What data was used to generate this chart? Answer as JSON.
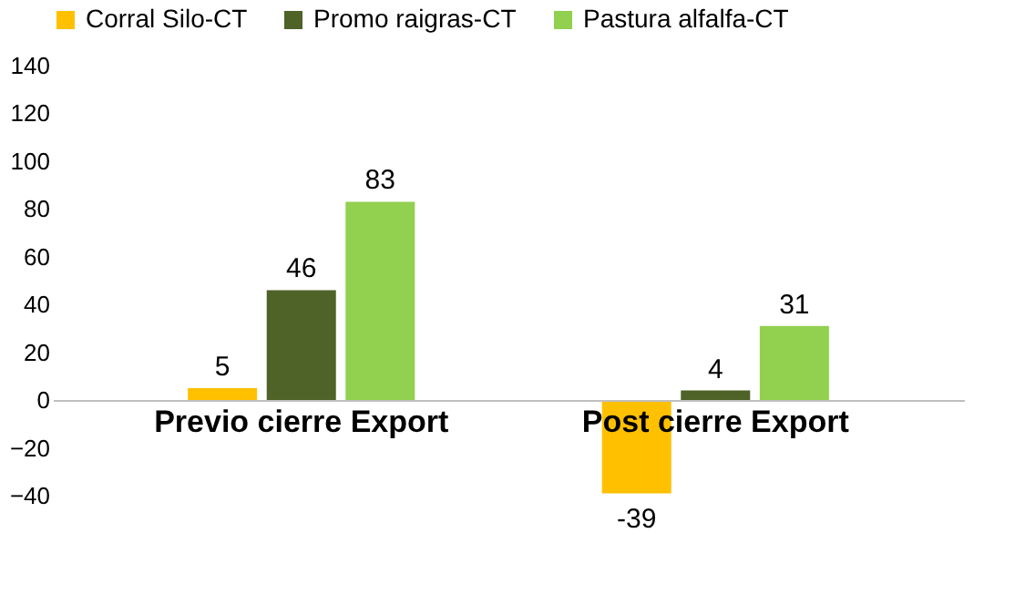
{
  "chart_data": {
    "type": "bar",
    "categories": [
      "Previo cierre Export",
      "Post cierre Export"
    ],
    "series": [
      {
        "name": "Corral Silo-CT",
        "color": "#ffc000",
        "values": [
          5,
          -39
        ]
      },
      {
        "name": "Promo raigras-CT",
        "color": "#4f6228",
        "values": [
          46,
          4
        ]
      },
      {
        "name": "Pastura alfalfa-CT",
        "color": "#92d050",
        "values": [
          83,
          31
        ]
      }
    ],
    "ylim": [
      -40,
      140
    ],
    "yticks": [
      -40,
      -20,
      0,
      20,
      40,
      60,
      80,
      100,
      120,
      140
    ],
    "data_labels": true,
    "legend": "top",
    "grid": false
  }
}
